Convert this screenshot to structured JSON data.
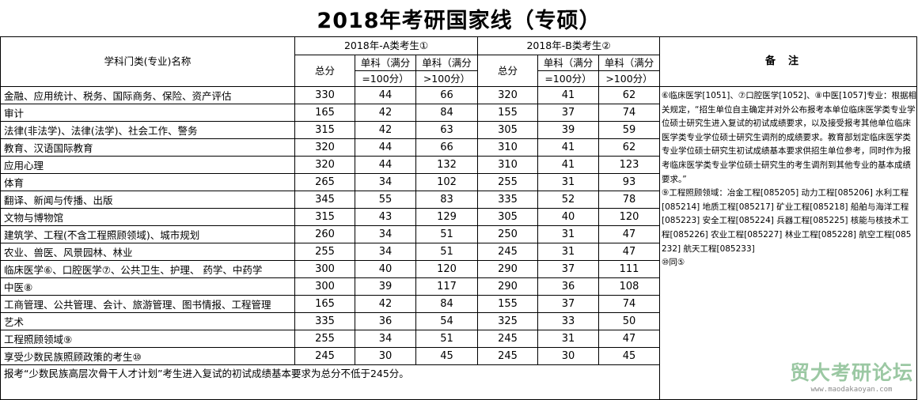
{
  "title": "2018年考研国家线（专硕）",
  "header": {
    "subject_col": "学科门类(专业)名称",
    "group_a": "2018年-A类考生①",
    "group_b": "2018年-B类考生②",
    "total": "总分",
    "single_100_l1": "单科（满分",
    "single_100_l2": "=100分）",
    "single_gt100_l1": "单科（满分",
    "single_gt100_l2": ">100分）",
    "notes": "备注"
  },
  "rows": [
    {
      "name": "金融、应用统计、税务、国际商务、保险、资产评估",
      "a_total": "330",
      "a_s100": "44",
      "a_sgt": "66",
      "b_total": "320",
      "b_s100": "41",
      "b_sgt": "62"
    },
    {
      "name": "审计",
      "a_total": "165",
      "a_s100": "42",
      "a_sgt": "84",
      "b_total": "155",
      "b_s100": "37",
      "b_sgt": "74"
    },
    {
      "name": "法律(非法学)、法律(法学)、社会工作、警务",
      "a_total": "315",
      "a_s100": "42",
      "a_sgt": "63",
      "b_total": "305",
      "b_s100": "39",
      "b_sgt": "59"
    },
    {
      "name": "教育、汉语国际教育",
      "a_total": "320",
      "a_s100": "44",
      "a_sgt": "66",
      "b_total": "310",
      "b_s100": "41",
      "b_sgt": "62"
    },
    {
      "name": "应用心理",
      "a_total": "320",
      "a_s100": "44",
      "a_sgt": "132",
      "b_total": "310",
      "b_s100": "41",
      "b_sgt": "123"
    },
    {
      "name": "体育",
      "a_total": "265",
      "a_s100": "34",
      "a_sgt": "102",
      "b_total": "255",
      "b_s100": "31",
      "b_sgt": "93"
    },
    {
      "name": "翻译、新闻与传播、出版",
      "a_total": "345",
      "a_s100": "55",
      "a_sgt": "83",
      "b_total": "335",
      "b_s100": "52",
      "b_sgt": "78"
    },
    {
      "name": "文物与博物馆",
      "a_total": "315",
      "a_s100": "43",
      "a_sgt": "129",
      "b_total": "305",
      "b_s100": "40",
      "b_sgt": "120"
    },
    {
      "name": "建筑学、工程(不含工程照顾领域)、城市规划",
      "a_total": "260",
      "a_s100": "34",
      "a_sgt": "51",
      "b_total": "250",
      "b_s100": "31",
      "b_sgt": "47"
    },
    {
      "name": "农业、兽医、风景园林、林业",
      "a_total": "255",
      "a_s100": "34",
      "a_sgt": "51",
      "b_total": "245",
      "b_s100": "31",
      "b_sgt": "47"
    },
    {
      "name": "临床医学⑥、口腔医学⑦、公共卫生、护理、 药学、中药学",
      "a_total": "300",
      "a_s100": "40",
      "a_sgt": "120",
      "b_total": "290",
      "b_s100": "37",
      "b_sgt": "111"
    },
    {
      "name": "中医⑧",
      "a_total": "300",
      "a_s100": "39",
      "a_sgt": "117",
      "b_total": "290",
      "b_s100": "36",
      "b_sgt": "108"
    },
    {
      "name": "工商管理、公共管理、会计、旅游管理、图书情报、工程管理",
      "a_total": "165",
      "a_s100": "42",
      "a_sgt": "84",
      "b_total": "155",
      "b_s100": "37",
      "b_sgt": "74"
    },
    {
      "name": "艺术",
      "a_total": "335",
      "a_s100": "36",
      "a_sgt": "54",
      "b_total": "325",
      "b_s100": "33",
      "b_sgt": "50"
    },
    {
      "name": "工程照顾领域⑨",
      "a_total": "255",
      "a_s100": "34",
      "a_sgt": "51",
      "b_total": "245",
      "b_s100": "31",
      "b_sgt": "47"
    },
    {
      "name": "享受少数民族照顾政策的考生⑩",
      "a_total": "245",
      "a_s100": "30",
      "a_sgt": "45",
      "b_total": "245",
      "b_s100": "30",
      "b_sgt": "45"
    }
  ],
  "notes": {
    "p1": "⑥临床医学[1051]、⑦口腔医学[1052]、⑧中医[1057]专业：根据相关规定，“招生单位自主确定并对外公布报考本单位临床医学类专业学位硕士研究生进入复试的初试成绩要求，以及接受报考其他单位临床医学类专业学位硕士研究生调剂的成绩要求。教育部划定临床医学类专业学位硕士研究生初试成绩基本要求供招生单位参考，同时作为报考临床医学类专业学位硕士研究生的考生调剂到其他专业的基本成绩要求。”",
    "p2": "⑨工程照顾领域：冶金工程[085205] 动力工程[085206] 水利工程[085214] 地质工程[085217] 矿业工程[085218] 船舶与海洋工程[085223] 安全工程[085224] 兵器工程[085225] 核能与核技术工程[085226] 农业工程[085227] 林业工程[085228] 航空工程[085232] 航天工程[085233]",
    "p3": "⑩同⑤"
  },
  "footer": "报考“少数民族高层次骨干人才计划”考生进入复试的初试成绩基本要求为总分不低于245分。",
  "watermark": {
    "title": "贸大考研论坛",
    "url": "www.maodakaoyan.com"
  }
}
